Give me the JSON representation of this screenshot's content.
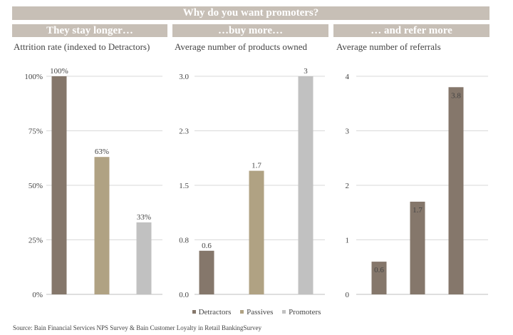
{
  "header": {
    "title": "Why do you want promoters?"
  },
  "panels": [
    {
      "heading": "They stay longer…",
      "subtitle": "Attrition rate (indexed to Detractors)"
    },
    {
      "heading": "…buy more…",
      "subtitle": "Average number of products owned"
    },
    {
      "heading": "… and refer more",
      "subtitle": "Average number of referrals"
    }
  ],
  "chart_data": [
    {
      "type": "bar",
      "categories": [
        "Detractors",
        "Passives",
        "Promoters"
      ],
      "values": [
        100,
        63,
        33
      ],
      "data_labels": [
        "100%",
        "63%",
        "33%"
      ],
      "ylabel": "Attrition rate (indexed to Detractors)",
      "ylim": [
        0,
        100
      ],
      "yticks": [
        0,
        25,
        50,
        75,
        100
      ],
      "ytick_labels": [
        "0%",
        "25%",
        "50%",
        "75%",
        "100%"
      ],
      "colors": [
        "#85776b",
        "#b0a283",
        "#c1c1c1"
      ],
      "label_position": "above",
      "grid": true
    },
    {
      "type": "bar",
      "categories": [
        "Detractors",
        "Passives",
        "Promoters"
      ],
      "values": [
        0.6,
        1.7,
        3
      ],
      "data_labels": [
        "0.6",
        "1.7",
        "3"
      ],
      "ylabel": "Average number of products owned",
      "ylim": [
        0,
        3
      ],
      "yticks": [
        0,
        0.75,
        1.5,
        2.25,
        3
      ],
      "ytick_labels": [
        "0.0",
        "0.8",
        "1.5",
        "2.3",
        "3.0"
      ],
      "colors": [
        "#85776b",
        "#b0a283",
        "#c1c1c1"
      ],
      "label_position": "above",
      "grid": true
    },
    {
      "type": "bar",
      "categories": [
        "Detractors",
        "Passives",
        "Promoters"
      ],
      "values": [
        0.6,
        1.7,
        3.8
      ],
      "data_labels": [
        "0.6",
        "1.7",
        "3.8"
      ],
      "ylabel": "Average number of referrals",
      "ylim": [
        0,
        4
      ],
      "yticks": [
        0,
        1,
        2,
        3,
        4
      ],
      "ytick_labels": [
        "0",
        "1",
        "2",
        "3",
        "4"
      ],
      "colors": [
        "#85776b",
        "#85776b",
        "#85776b"
      ],
      "label_position": "inside-top",
      "grid": true
    }
  ],
  "legend": {
    "position": "bottom-center",
    "items": [
      {
        "label": "Detractors",
        "color": "#85776b"
      },
      {
        "label": "Passives",
        "color": "#b0a283"
      },
      {
        "label": "Promoters",
        "color": "#c1c1c1"
      }
    ]
  },
  "footer": {
    "source": "Source: Bain Financial Services NPS Survey & Bain Customer Loyalty in Retail BankingSurvey"
  }
}
